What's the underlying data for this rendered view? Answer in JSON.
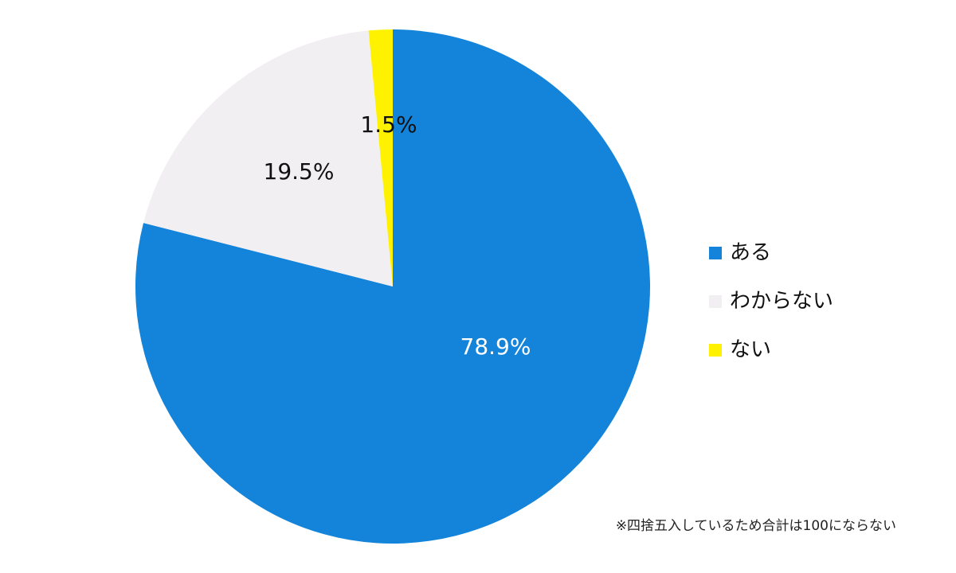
{
  "chart_data": {
    "type": "pie",
    "categories": [
      "ある",
      "わからない",
      "ない"
    ],
    "values": [
      78.9,
      19.5,
      1.5
    ],
    "value_labels": [
      "78.9%",
      "19.5%",
      "1.5%"
    ],
    "colors": [
      "#1384d9",
      "#f2eff3",
      "#fff200"
    ],
    "note": "※四捨五入しているため合計は100にならない"
  }
}
